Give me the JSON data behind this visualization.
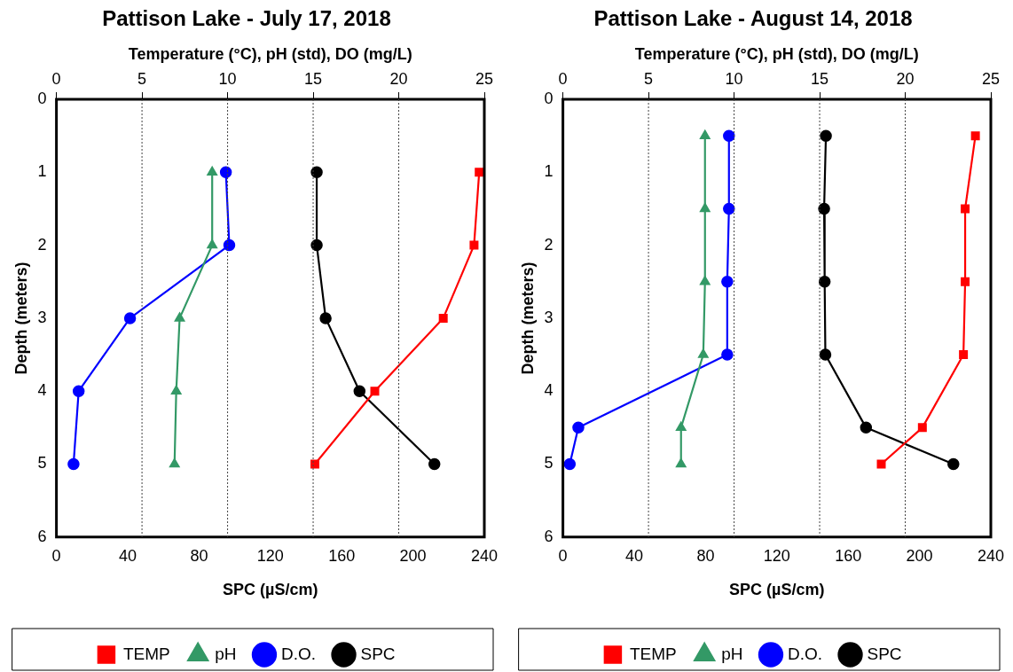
{
  "chart_data": [
    {
      "type": "line",
      "title": "Pattison Lake - July 17, 2018",
      "x2label": "Temperature (°C), pH (std), DO (mg/L)",
      "xlabel": "SPC (µS/cm)",
      "ylabel": "Depth (meters)",
      "xlim": [
        0,
        240
      ],
      "xticks": [
        0,
        40,
        80,
        120,
        160,
        200,
        240
      ],
      "x2lim": [
        0,
        25
      ],
      "x2ticks": [
        0,
        5,
        10,
        15,
        20,
        25
      ],
      "ylim": [
        6,
        0
      ],
      "yticks": [
        0,
        1,
        2,
        3,
        4,
        5,
        6
      ],
      "grid": "x2",
      "legend": "bottom",
      "series": [
        {
          "name": "TEMP",
          "color": "#ff0000",
          "marker": "square",
          "axis": "x2",
          "x": [
            24.7,
            24.4,
            22.6,
            18.6,
            15.1
          ],
          "values": [
            1,
            2,
            3,
            4,
            5
          ]
        },
        {
          "name": "pH",
          "color": "#339966",
          "marker": "triangle",
          "axis": "x2",
          "x": [
            9.1,
            9.1,
            7.2,
            7.0,
            6.9
          ],
          "values": [
            1,
            2,
            3,
            4,
            5
          ]
        },
        {
          "name": "D.O.",
          "color": "#0000ff",
          "marker": "circle",
          "axis": "x2",
          "x": [
            9.9,
            10.1,
            4.3,
            1.3,
            1.0
          ],
          "values": [
            1,
            2,
            3,
            4,
            5
          ]
        },
        {
          "name": "SPC",
          "color": "#000000",
          "marker": "circle",
          "x": [
            146,
            146,
            151,
            170,
            212
          ],
          "values": [
            1,
            2,
            3,
            4,
            5
          ]
        }
      ]
    },
    {
      "type": "line",
      "title": "Pattison Lake - August 14, 2018",
      "x2label": "Temperature (°C), pH (std), DO (mg/L)",
      "xlabel": "SPC (µS/cm)",
      "ylabel": "Depth (meters)",
      "xlim": [
        0,
        240
      ],
      "xticks": [
        0,
        40,
        80,
        120,
        160,
        200,
        240
      ],
      "x2lim": [
        0,
        25
      ],
      "x2ticks": [
        0,
        5,
        10,
        15,
        20,
        25
      ],
      "ylim": [
        6,
        0
      ],
      "yticks": [
        0,
        1,
        2,
        3,
        4,
        5,
        6
      ],
      "grid": "x2",
      "legend": "bottom",
      "series": [
        {
          "name": "TEMP",
          "color": "#ff0000",
          "marker": "square",
          "axis": "x2",
          "x": [
            24.1,
            23.5,
            23.5,
            23.4,
            21.0,
            18.6
          ],
          "values": [
            0.5,
            1.5,
            2.5,
            3.5,
            4.5,
            5
          ]
        },
        {
          "name": "pH",
          "color": "#339966",
          "marker": "triangle",
          "axis": "x2",
          "x": [
            8.3,
            8.3,
            8.3,
            8.2,
            6.9,
            6.9
          ],
          "values": [
            0.5,
            1.5,
            2.5,
            3.5,
            4.5,
            5
          ]
        },
        {
          "name": "D.O.",
          "color": "#0000ff",
          "marker": "circle",
          "axis": "x2",
          "x": [
            9.7,
            9.7,
            9.6,
            9.6,
            0.9,
            0.4
          ],
          "values": [
            0.5,
            1.5,
            2.5,
            3.5,
            4.5,
            5
          ]
        },
        {
          "name": "SPC",
          "color": "#000000",
          "marker": "circle",
          "x": [
            147.5,
            146.5,
            146.8,
            147.2,
            170,
            219
          ],
          "values": [
            0.5,
            1.5,
            2.5,
            3.5,
            4.5,
            5
          ]
        }
      ]
    }
  ]
}
